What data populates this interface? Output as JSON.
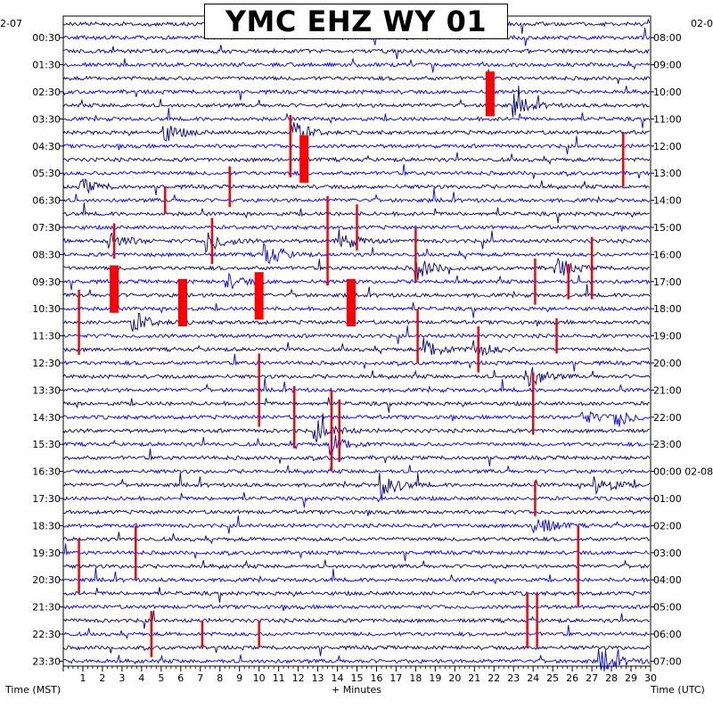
{
  "chart_data": {
    "type": "line",
    "title": "YMC EHZ WY 01",
    "left_date": "2-07",
    "right_date": "02-0",
    "xlabel": "+ Minutes",
    "ylabel_left": "Time (MST)",
    "ylabel_right": "Time (UTC)",
    "xlim": [
      0,
      30
    ],
    "x_ticks": [
      "1",
      "2",
      "3",
      "4",
      "5",
      "6",
      "7",
      "8",
      "9",
      "10",
      "11",
      "12",
      "13",
      "14",
      "15",
      "16",
      "17",
      "18",
      "19",
      "20",
      "21",
      "22",
      "23",
      "24",
      "25",
      "26",
      "27",
      "28",
      "29",
      "30"
    ],
    "left_ticks": [
      "00:30",
      "01:30",
      "02:30",
      "03:30",
      "04:30",
      "05:30",
      "06:30",
      "07:30",
      "08:30",
      "09:30",
      "10:30",
      "11:30",
      "12:30",
      "13:30",
      "14:30",
      "15:30",
      "16:30",
      "17:30",
      "18:30",
      "19:30",
      "20:30",
      "21:30",
      "22:30",
      "23:30"
    ],
    "right_ticks": [
      "08:00",
      "09:00",
      "10:00",
      "11:00",
      "12:00",
      "13:00",
      "14:00",
      "15:00",
      "16:00",
      "17:00",
      "18:00",
      "19:00",
      "20:00",
      "21:00",
      "22:00",
      "23:00",
      "00:00 02-08",
      "01:00",
      "02:00",
      "03:00",
      "04:00",
      "05:00",
      "06:00",
      "07:00"
    ],
    "trace_colors": [
      "#000080",
      "#0000ff"
    ],
    "clip_color": "#ff0000",
    "traces_per_hour": 2,
    "clipped_events": [
      {
        "minute": 21.8,
        "from_trace": 3.5,
        "to_trace": 6.8
      },
      {
        "minute": 12.3,
        "from_trace": 8.2,
        "to_trace": 11.7
      },
      {
        "minute": 2.6,
        "from_trace": 17.8,
        "to_trace": 21.3
      },
      {
        "minute": 6.1,
        "from_trace": 18.8,
        "to_trace": 22.3
      },
      {
        "minute": 10.0,
        "from_trace": 18.3,
        "to_trace": 21.8
      },
      {
        "minute": 14.7,
        "from_trace": 18.8,
        "to_trace": 22.3
      }
    ],
    "large_events": [
      {
        "minute": 1.0,
        "trace": 12,
        "amp": 8
      },
      {
        "minute": 2.4,
        "trace": 16,
        "amp": 10
      },
      {
        "minute": 3.6,
        "trace": 22,
        "amp": 12
      },
      {
        "minute": 5.2,
        "trace": 8,
        "amp": 10
      },
      {
        "minute": 7.4,
        "trace": 16,
        "amp": 12
      },
      {
        "minute": 8.4,
        "trace": 19,
        "amp": 8
      },
      {
        "minute": 10.3,
        "trace": 17,
        "amp": 14
      },
      {
        "minute": 11.8,
        "trace": 8,
        "amp": 12
      },
      {
        "minute": 13.0,
        "trace": 30,
        "amp": 12
      },
      {
        "minute": 13.7,
        "trace": 31,
        "amp": 12
      },
      {
        "minute": 14.0,
        "trace": 16,
        "amp": 14
      },
      {
        "minute": 16.3,
        "trace": 34,
        "amp": 14
      },
      {
        "minute": 18.0,
        "trace": 18,
        "amp": 14
      },
      {
        "minute": 18.5,
        "trace": 24,
        "amp": 12
      },
      {
        "minute": 21.0,
        "trace": 24,
        "amp": 10
      },
      {
        "minute": 23.0,
        "trace": 6,
        "amp": 12
      },
      {
        "minute": 23.7,
        "trace": 26,
        "amp": 14
      },
      {
        "minute": 24.1,
        "trace": 37,
        "amp": 14
      },
      {
        "minute": 25.3,
        "trace": 18,
        "amp": 10
      },
      {
        "minute": 26.5,
        "trace": 29,
        "amp": 8
      },
      {
        "minute": 27.2,
        "trace": 34,
        "amp": 12
      },
      {
        "minute": 27.6,
        "trace": 47,
        "amp": 12
      },
      {
        "minute": 28.3,
        "trace": 29,
        "amp": 10
      }
    ],
    "red_spikes": [
      {
        "minute": 0.8,
        "trace": 22,
        "half": 2.4
      },
      {
        "minute": 2.6,
        "trace": 16,
        "half": 1.3
      },
      {
        "minute": 5.2,
        "trace": 13,
        "half": 1.0
      },
      {
        "minute": 7.6,
        "trace": 16,
        "half": 1.7
      },
      {
        "minute": 8.5,
        "trace": 12,
        "half": 1.5
      },
      {
        "minute": 10.0,
        "trace": 27,
        "half": 2.7
      },
      {
        "minute": 11.6,
        "trace": 9,
        "half": 2.3
      },
      {
        "minute": 11.8,
        "trace": 29,
        "half": 2.3
      },
      {
        "minute": 13.5,
        "trace": 16,
        "half": 3.3
      },
      {
        "minute": 13.7,
        "trace": 30,
        "half": 3.0
      },
      {
        "minute": 14.1,
        "trace": 30,
        "half": 2.3
      },
      {
        "minute": 15.0,
        "trace": 15,
        "half": 1.7
      },
      {
        "minute": 18.0,
        "trace": 17,
        "half": 2.0
      },
      {
        "minute": 18.1,
        "trace": 23,
        "half": 2.0
      },
      {
        "minute": 21.2,
        "trace": 24,
        "half": 1.7
      },
      {
        "minute": 24.0,
        "trace": 28,
        "half": 2.3
      },
      {
        "minute": 24.1,
        "trace": 35,
        "half": 1.3
      },
      {
        "minute": 24.1,
        "trace": 19,
        "half": 1.7
      },
      {
        "minute": 25.2,
        "trace": 23,
        "half": 1.3
      },
      {
        "minute": 25.8,
        "trace": 19,
        "half": 1.3
      },
      {
        "minute": 26.3,
        "trace": 40,
        "half": 3.0
      },
      {
        "minute": 27.0,
        "trace": 18,
        "half": 2.3
      },
      {
        "minute": 28.6,
        "trace": 10,
        "half": 2.0
      },
      {
        "minute": 4.5,
        "trace": 45,
        "half": 1.7
      },
      {
        "minute": 7.1,
        "trace": 45,
        "half": 1.0
      },
      {
        "minute": 10.0,
        "trace": 45,
        "half": 1.0
      },
      {
        "minute": 23.7,
        "trace": 44,
        "half": 2.0
      },
      {
        "minute": 24.2,
        "trace": 44,
        "half": 2.0
      },
      {
        "minute": 0.8,
        "trace": 40,
        "half": 2.0
      },
      {
        "minute": 3.7,
        "trace": 39,
        "half": 2.0
      }
    ]
  }
}
